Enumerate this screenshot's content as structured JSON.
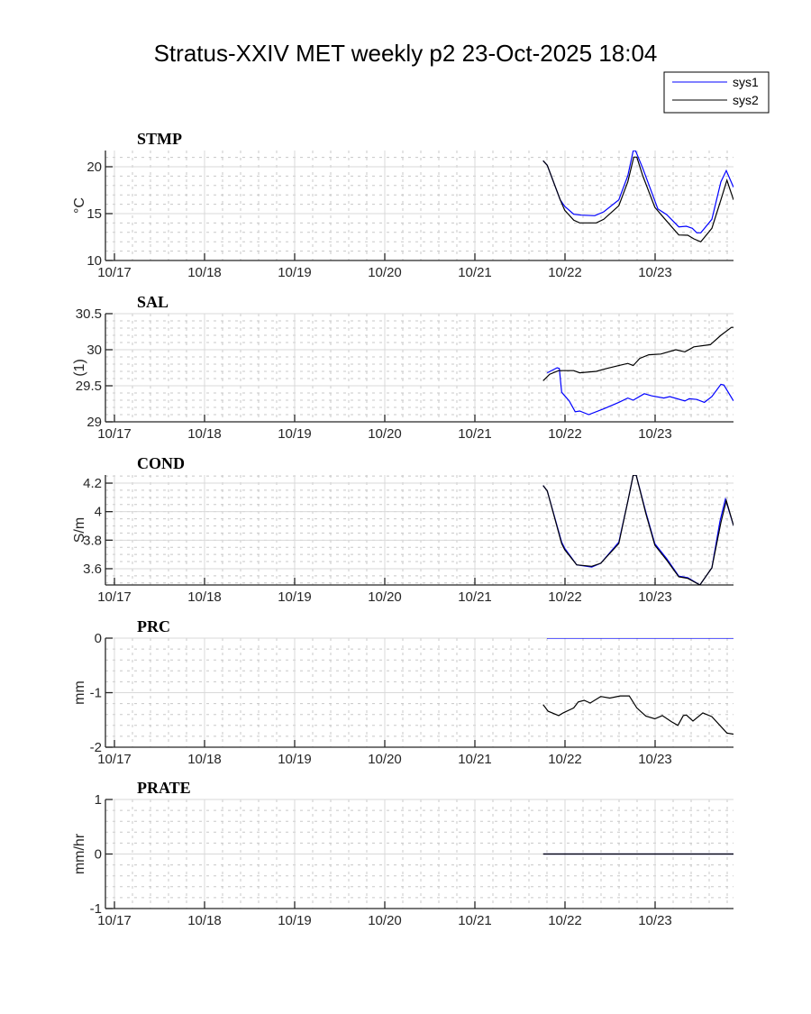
{
  "chart_data": {
    "title": "Stratus-XXIV MET weekly p2 23-Oct-2025 18:04",
    "type": "line",
    "legend": {
      "placement": "top-right",
      "entries": [
        {
          "name": "sys1",
          "color": "#0000ff"
        },
        {
          "name": "sys2",
          "color": "#000000"
        }
      ]
    },
    "xlim_days": [
      -0.1,
      6.87
    ],
    "x_ticks": [
      {
        "day": 0,
        "label": "10/17"
      },
      {
        "day": 1,
        "label": "10/18"
      },
      {
        "day": 2,
        "label": "10/19"
      },
      {
        "day": 3,
        "label": "10/20"
      },
      {
        "day": 4,
        "label": "10/21"
      },
      {
        "day": 5,
        "label": "10/22"
      },
      {
        "day": 6,
        "label": "10/23"
      }
    ],
    "minor_x_step": 0.2,
    "grid": true,
    "panels": [
      {
        "name": "STMP",
        "ylabel": "°C",
        "ylim": [
          10,
          21.73
        ],
        "minor_y_step": 1,
        "y_ticks": [
          {
            "value": 10,
            "label": "10"
          },
          {
            "value": 15,
            "label": "15"
          },
          {
            "value": 20,
            "label": "20"
          }
        ],
        "series": [
          {
            "name": "sys1",
            "color": "#0000ff",
            "x": [
              4.757,
              4.803,
              4.947,
              4.997,
              5.097,
              5.18,
              5.33,
              5.43,
              5.597,
              5.697,
              5.757,
              5.783,
              5.863,
              6.03,
              6.13,
              6.263,
              6.347,
              6.413,
              6.463,
              6.507,
              6.63,
              6.73,
              6.79,
              6.87
            ],
            "y": [
              20.64,
              20.16,
              16.47,
              15.77,
              14.93,
              14.84,
              14.78,
              15.19,
              16.47,
              19.04,
              21.7,
              21.7,
              19.84,
              15.51,
              14.88,
              13.59,
              13.65,
              13.43,
              12.95,
              12.95,
              14.39,
              18.39,
              19.59,
              17.82
            ]
          },
          {
            "name": "sys2",
            "color": "#000000",
            "x": [
              4.757,
              4.803,
              4.947,
              4.997,
              5.097,
              5.163,
              5.347,
              5.43,
              5.597,
              5.697,
              5.763,
              5.797,
              5.863,
              5.997,
              6.097,
              6.263,
              6.363,
              6.43,
              6.507,
              6.63,
              6.73,
              6.797,
              6.87
            ],
            "y": [
              20.64,
              20.16,
              16.47,
              15.36,
              14.3,
              14.01,
              14.01,
              14.39,
              15.84,
              18.39,
              21.03,
              21.03,
              19.04,
              15.67,
              14.55,
              12.72,
              12.69,
              12.31,
              11.99,
              13.43,
              16.47,
              18.56,
              16.47
            ]
          }
        ]
      },
      {
        "name": "SAL",
        "ylabel": "(1)",
        "ylim": [
          29,
          30.5
        ],
        "minor_y_step": 0.1,
        "y_ticks": [
          {
            "value": 29,
            "label": "29"
          },
          {
            "value": 29.5,
            "label": "29.5"
          },
          {
            "value": 30,
            "label": "30"
          },
          {
            "value": 30.5,
            "label": "30.5"
          }
        ],
        "series": [
          {
            "name": "sys1",
            "color": "#0000ff",
            "x": [
              4.803,
              4.913,
              4.937,
              4.963,
              5.047,
              5.113,
              5.163,
              5.263,
              5.43,
              5.597,
              5.697,
              5.757,
              5.88,
              5.963,
              6.097,
              6.163,
              6.33,
              6.38,
              6.463,
              6.547,
              6.63,
              6.73,
              6.763,
              6.87
            ],
            "y": [
              29.68,
              29.75,
              29.74,
              29.41,
              29.29,
              29.14,
              29.15,
              29.1,
              29.18,
              29.27,
              29.33,
              29.3,
              29.39,
              29.36,
              29.33,
              29.35,
              29.29,
              29.32,
              29.31,
              29.27,
              29.35,
              29.52,
              29.51,
              29.29
            ]
          },
          {
            "name": "sys2",
            "color": "#000000",
            "x": [
              4.757,
              4.83,
              4.93,
              5.097,
              5.163,
              5.347,
              5.463,
              5.597,
              5.697,
              5.757,
              5.83,
              5.93,
              6.063,
              6.23,
              6.33,
              6.43,
              6.613,
              6.73,
              6.847,
              6.87
            ],
            "y": [
              29.57,
              29.66,
              29.71,
              29.71,
              29.68,
              29.7,
              29.74,
              29.78,
              29.81,
              29.78,
              29.88,
              29.93,
              29.94,
              30.0,
              29.97,
              30.04,
              30.07,
              30.2,
              30.31,
              30.31
            ]
          }
        ]
      },
      {
        "name": "COND",
        "ylabel": "S/m",
        "ylim": [
          3.486,
          4.257
        ],
        "minor_y_step": 0.05,
        "y_ticks": [
          {
            "value": 3.6,
            "label": "3.6"
          },
          {
            "value": 3.8,
            "label": "3.8"
          },
          {
            "value": 4,
            "label": "4"
          },
          {
            "value": 4.2,
            "label": "4.2"
          }
        ],
        "series": [
          {
            "name": "sys1",
            "color": "#0000ff",
            "x": [
              4.757,
              4.803,
              4.963,
              4.997,
              5.13,
              5.297,
              5.397,
              5.597,
              5.697,
              5.757,
              5.79,
              5.897,
              5.997,
              6.13,
              6.263,
              6.363,
              6.497,
              6.63,
              6.72,
              6.78,
              6.87
            ],
            "y": [
              4.184,
              4.146,
              3.786,
              3.743,
              3.627,
              3.612,
              3.638,
              3.786,
              4.072,
              4.256,
              4.256,
              3.997,
              3.775,
              3.669,
              3.548,
              3.537,
              3.486,
              3.606,
              3.934,
              4.088,
              3.903
            ]
          },
          {
            "name": "sys2",
            "color": "#000000",
            "x": [
              4.757,
              4.803,
              4.963,
              4.997,
              5.13,
              5.297,
              5.397,
              5.597,
              5.697,
              5.757,
              5.79,
              5.897,
              5.997,
              6.13,
              6.263,
              6.363,
              6.497,
              6.63,
              6.73,
              6.79,
              6.87
            ],
            "y": [
              4.184,
              4.146,
              3.776,
              3.733,
              3.627,
              3.617,
              3.638,
              3.776,
              4.072,
              4.256,
              4.256,
              3.987,
              3.765,
              3.659,
              3.543,
              3.532,
              3.486,
              3.606,
              3.924,
              4.078,
              3.903
            ]
          }
        ]
      },
      {
        "name": "PRC",
        "ylabel": "mm",
        "ylim": [
          -2,
          0
        ],
        "minor_y_step": 0.2,
        "y_ticks": [
          {
            "value": -2,
            "label": "-2"
          },
          {
            "value": -1,
            "label": "-1"
          },
          {
            "value": 0,
            "label": "0"
          }
        ],
        "series": [
          {
            "name": "sys1",
            "color": "#0000ff",
            "x": [
              4.8,
              6.87
            ],
            "y": [
              0,
              0
            ]
          },
          {
            "name": "sys2",
            "color": "#000000",
            "x": [
              4.757,
              4.813,
              4.93,
              4.98,
              5.097,
              5.147,
              5.213,
              5.28,
              5.397,
              5.497,
              5.613,
              5.713,
              5.797,
              5.897,
              5.997,
              6.08,
              6.18,
              6.253,
              6.313,
              6.347,
              6.42,
              6.53,
              6.63,
              6.797,
              6.87
            ],
            "y": [
              -1.22,
              -1.34,
              -1.42,
              -1.37,
              -1.28,
              -1.17,
              -1.14,
              -1.19,
              -1.07,
              -1.1,
              -1.06,
              -1.06,
              -1.28,
              -1.43,
              -1.48,
              -1.42,
              -1.53,
              -1.6,
              -1.42,
              -1.41,
              -1.52,
              -1.37,
              -1.44,
              -1.74,
              -1.76
            ]
          }
        ]
      },
      {
        "name": "PRATE",
        "ylabel": "mm/hr",
        "ylim": [
          -1,
          1
        ],
        "minor_y_step": 0.2,
        "y_ticks": [
          {
            "value": -1,
            "label": "-1"
          },
          {
            "value": 0,
            "label": "0"
          },
          {
            "value": 1,
            "label": "1"
          }
        ],
        "series": [
          {
            "name": "sys1",
            "color": "#0000ff",
            "x": [
              4.76,
              6.87
            ],
            "y": [
              0,
              0
            ]
          },
          {
            "name": "sys2",
            "color": "#000000",
            "x": [
              4.757,
              6.87
            ],
            "y": [
              0,
              0
            ]
          }
        ]
      }
    ]
  }
}
